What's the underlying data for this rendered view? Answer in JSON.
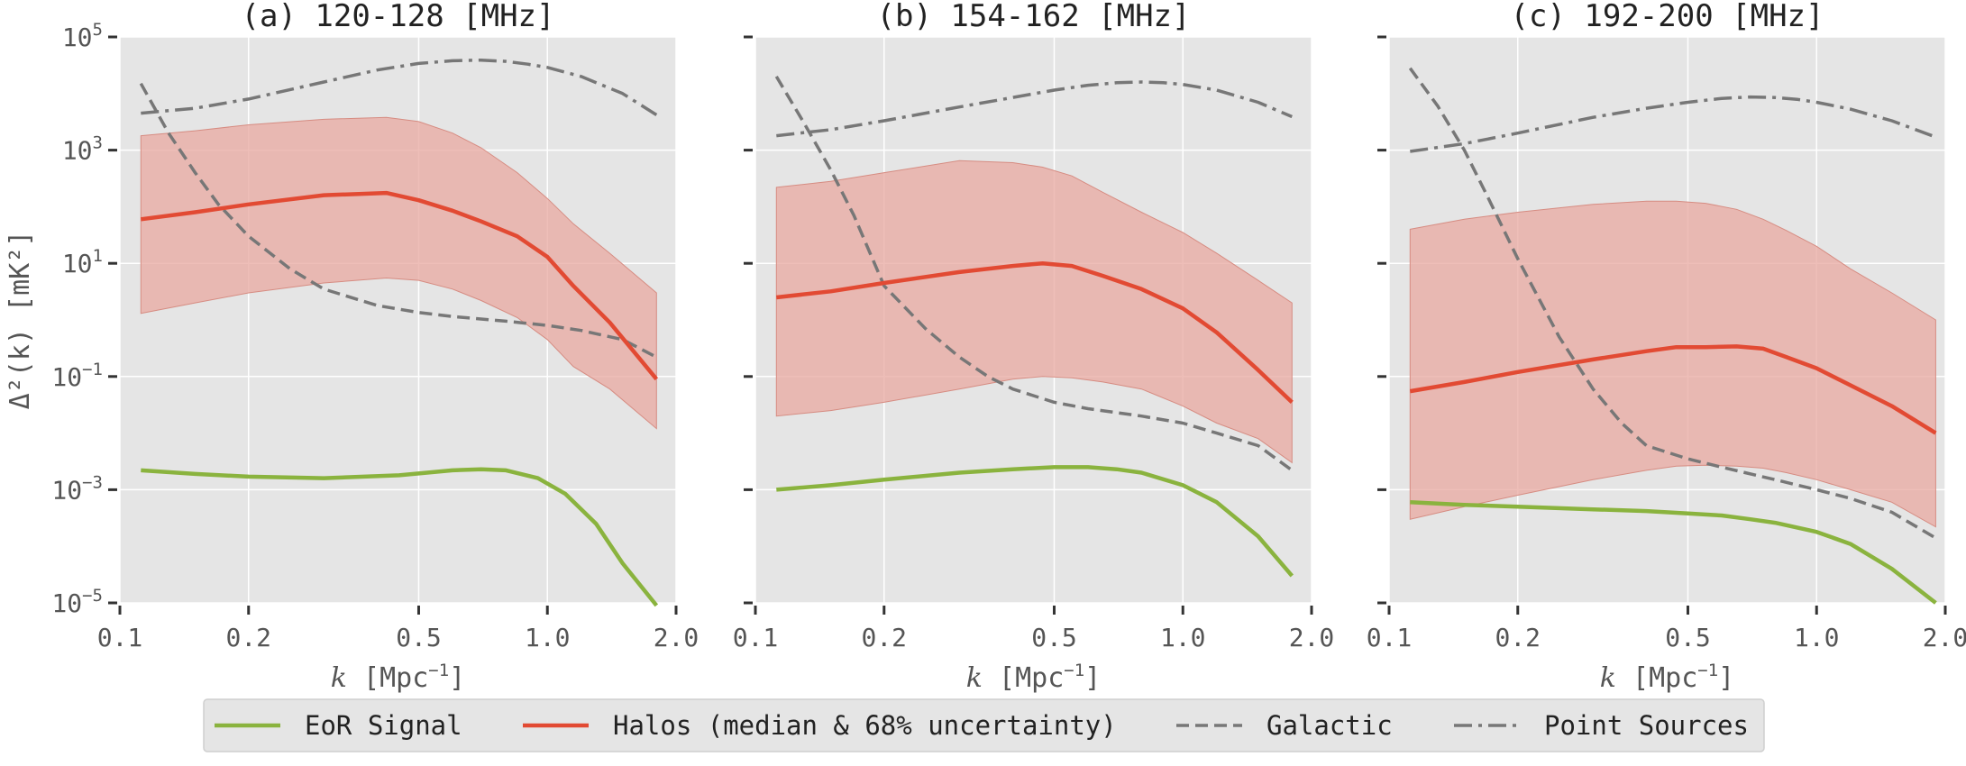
{
  "chart_data": [
    {
      "type": "line",
      "title": "(a) 120-128 [MHz]",
      "xlabel": "k [Mpc^-1]",
      "ylabel": "Δ²(k) [mK²]",
      "xscale": "log",
      "yscale": "log",
      "xlim": [
        0.1,
        2.0
      ],
      "ylim": [
        1e-05,
        100000.0
      ],
      "x_ticks": [
        "0.1",
        "0.2",
        "0.5",
        "1.0",
        "2.0"
      ],
      "y_ticks": [
        "10^-5",
        "10^-3",
        "10^-1",
        "10^1",
        "10^3",
        "10^5"
      ],
      "grid": true,
      "series": [
        {
          "name": "EoR Signal",
          "style": "solid",
          "color": "#8ab33e",
          "x": [
            0.112,
            0.15,
            0.2,
            0.3,
            0.45,
            0.6,
            0.7,
            0.8,
            0.95,
            1.1,
            1.3,
            1.5,
            1.8
          ],
          "y": [
            0.0022,
            0.0019,
            0.0017,
            0.0016,
            0.0018,
            0.0022,
            0.0023,
            0.0022,
            0.0016,
            0.00085,
            0.00025,
            5e-05,
            9e-06
          ]
        },
        {
          "name": "Halos (median & 68% uncertainty)",
          "style": "solid",
          "color": "#e24a33",
          "x": [
            0.112,
            0.15,
            0.2,
            0.3,
            0.42,
            0.5,
            0.6,
            0.7,
            0.85,
            1.0,
            1.15,
            1.4,
            1.8
          ],
          "y": [
            60,
            80,
            110,
            160,
            175,
            130,
            85,
            55,
            30,
            13,
            4,
            0.9,
            0.09
          ],
          "lower": [
            1.3,
            2,
            3,
            4.5,
            5.5,
            5,
            3.5,
            2.2,
            1.1,
            0.45,
            0.15,
            0.06,
            0.012
          ],
          "upper": [
            1800,
            2200,
            2800,
            3500,
            3800,
            3200,
            2000,
            1100,
            400,
            140,
            50,
            15,
            3
          ]
        },
        {
          "name": "Galactic",
          "style": "dashed",
          "color": "#777777",
          "x": [
            0.112,
            0.13,
            0.15,
            0.17,
            0.2,
            0.25,
            0.3,
            0.4,
            0.5,
            0.6,
            0.8,
            1.0,
            1.2,
            1.5,
            1.8
          ],
          "y": [
            15000,
            2000,
            400,
            110,
            30,
            8,
            3.5,
            1.8,
            1.35,
            1.15,
            0.95,
            0.8,
            0.65,
            0.45,
            0.22
          ]
        },
        {
          "name": "Point Sources",
          "style": "dashdot",
          "color": "#777777",
          "x": [
            0.112,
            0.15,
            0.2,
            0.3,
            0.4,
            0.5,
            0.6,
            0.7,
            0.8,
            0.9,
            1.0,
            1.2,
            1.5,
            1.8
          ],
          "y": [
            4500,
            5500,
            8000,
            16000,
            26000,
            34000,
            38000,
            39000,
            37000,
            33000,
            29000,
            20000,
            10000,
            4200
          ]
        }
      ]
    },
    {
      "type": "line",
      "title": "(b) 154-162 [MHz]",
      "xlabel": "k [Mpc^-1]",
      "ylabel": "",
      "xscale": "log",
      "yscale": "log",
      "xlim": [
        0.1,
        2.0
      ],
      "ylim": [
        1e-05,
        100000.0
      ],
      "x_ticks": [
        "0.1",
        "0.2",
        "0.5",
        "1.0",
        "2.0"
      ],
      "grid": true,
      "series": [
        {
          "name": "EoR Signal",
          "style": "solid",
          "color": "#8ab33e",
          "x": [
            0.112,
            0.15,
            0.2,
            0.3,
            0.4,
            0.5,
            0.6,
            0.7,
            0.8,
            1.0,
            1.2,
            1.5,
            1.8
          ],
          "y": [
            0.001,
            0.0012,
            0.0015,
            0.002,
            0.0023,
            0.0025,
            0.0025,
            0.0023,
            0.002,
            0.0012,
            0.0006,
            0.00015,
            3e-05
          ]
        },
        {
          "name": "Halos (median & 68% uncertainty)",
          "style": "solid",
          "color": "#e24a33",
          "x": [
            0.112,
            0.15,
            0.2,
            0.3,
            0.4,
            0.47,
            0.55,
            0.65,
            0.8,
            1.0,
            1.2,
            1.5,
            1.8
          ],
          "y": [
            2.5,
            3.2,
            4.5,
            7,
            9,
            10,
            9,
            6,
            3.5,
            1.6,
            0.6,
            0.13,
            0.035
          ],
          "lower": [
            0.02,
            0.025,
            0.035,
            0.06,
            0.09,
            0.1,
            0.095,
            0.08,
            0.06,
            0.03,
            0.015,
            0.008,
            0.003
          ],
          "upper": [
            220,
            280,
            400,
            650,
            600,
            500,
            350,
            180,
            80,
            35,
            15,
            5,
            2
          ]
        },
        {
          "name": "Galactic",
          "style": "dashed",
          "color": "#777777",
          "x": [
            0.112,
            0.13,
            0.15,
            0.17,
            0.2,
            0.25,
            0.3,
            0.35,
            0.4,
            0.5,
            0.6,
            0.8,
            1.0,
            1.2,
            1.5,
            1.8
          ],
          "y": [
            20000,
            3000,
            450,
            70,
            4,
            0.7,
            0.22,
            0.1,
            0.06,
            0.035,
            0.027,
            0.02,
            0.015,
            0.01,
            0.006,
            0.0022
          ]
        },
        {
          "name": "Point Sources",
          "style": "dashdot",
          "color": "#777777",
          "x": [
            0.112,
            0.15,
            0.2,
            0.3,
            0.4,
            0.5,
            0.6,
            0.7,
            0.8,
            0.9,
            1.0,
            1.2,
            1.5,
            1.8
          ],
          "y": [
            1800,
            2300,
            3300,
            5800,
            8500,
            11500,
            14000,
            15500,
            16000,
            15500,
            14500,
            11500,
            7000,
            3900
          ]
        }
      ]
    },
    {
      "type": "line",
      "title": "(c) 192-200 [MHz]",
      "xlabel": "k [Mpc^-1]",
      "ylabel": "",
      "xscale": "log",
      "yscale": "log",
      "xlim": [
        0.1,
        2.0
      ],
      "ylim": [
        1e-05,
        100000.0
      ],
      "x_ticks": [
        "0.1",
        "0.2",
        "0.5",
        "1.0",
        "2.0"
      ],
      "grid": true,
      "series": [
        {
          "name": "EoR Signal",
          "style": "solid",
          "color": "#8ab33e",
          "x": [
            0.112,
            0.15,
            0.2,
            0.3,
            0.4,
            0.5,
            0.6,
            0.7,
            0.8,
            1.0,
            1.2,
            1.5,
            1.9
          ],
          "y": [
            0.0006,
            0.00054,
            0.0005,
            0.00045,
            0.00042,
            0.00038,
            0.00035,
            0.0003,
            0.00026,
            0.00018,
            0.00011,
            4e-05,
            1e-05
          ]
        },
        {
          "name": "Halos (median & 68% uncertainty)",
          "style": "solid",
          "color": "#e24a33",
          "x": [
            0.112,
            0.15,
            0.2,
            0.3,
            0.4,
            0.47,
            0.55,
            0.65,
            0.75,
            0.85,
            1.0,
            1.2,
            1.5,
            1.9
          ],
          "y": [
            0.055,
            0.08,
            0.12,
            0.2,
            0.28,
            0.33,
            0.33,
            0.34,
            0.31,
            0.22,
            0.14,
            0.07,
            0.03,
            0.01
          ],
          "lower": [
            0.0003,
            0.0005,
            0.0008,
            0.0015,
            0.0022,
            0.0026,
            0.0027,
            0.0026,
            0.0024,
            0.002,
            0.0015,
            0.001,
            0.0006,
            0.00022
          ],
          "upper": [
            40,
            60,
            80,
            110,
            125,
            125,
            115,
            90,
            60,
            38,
            20,
            8,
            3,
            1
          ]
        },
        {
          "name": "Galactic",
          "style": "dashed",
          "color": "#777777",
          "x": [
            0.112,
            0.13,
            0.15,
            0.17,
            0.2,
            0.25,
            0.3,
            0.35,
            0.4,
            0.5,
            0.6,
            0.8,
            1.0,
            1.2,
            1.5,
            1.9
          ],
          "y": [
            28000,
            6000,
            1000,
            150,
            12,
            0.5,
            0.06,
            0.015,
            0.006,
            0.0035,
            0.0025,
            0.0015,
            0.001,
            0.0007,
            0.0004,
            0.00014
          ]
        },
        {
          "name": "Point Sources",
          "style": "dashdot",
          "color": "#777777",
          "x": [
            0.112,
            0.15,
            0.2,
            0.3,
            0.4,
            0.5,
            0.6,
            0.7,
            0.8,
            0.9,
            1.0,
            1.2,
            1.5,
            1.9
          ],
          "y": [
            950,
            1300,
            2000,
            3800,
            5500,
            7000,
            8200,
            8700,
            8500,
            7900,
            7000,
            5300,
            3300,
            1700
          ]
        }
      ]
    }
  ],
  "legend": {
    "placement": "bottom-center",
    "entries": [
      {
        "label": "EoR Signal",
        "color": "#8ab33e",
        "style": "solid"
      },
      {
        "label": "Halos (median & 68% uncertainty)",
        "color": "#e24a33",
        "style": "solid"
      },
      {
        "label": "Galactic",
        "color": "#777777",
        "style": "dashed"
      },
      {
        "label": "Point Sources",
        "color": "#777777",
        "style": "dashdot"
      }
    ]
  },
  "colors": {
    "panel_background": "#e5e5e5",
    "grid": "#ffffff",
    "band": "#e8a8a0"
  }
}
